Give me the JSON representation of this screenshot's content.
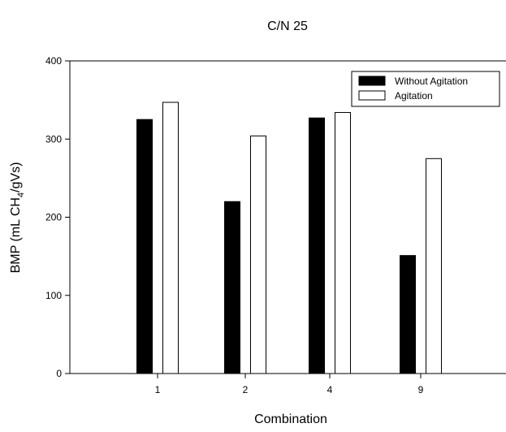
{
  "chart_data": {
    "type": "bar",
    "title": "C/N 25",
    "xlabel": "Combination",
    "ylabel_main": "BMP (mL CH",
    "ylabel_sub": "4",
    "ylabel_tail": "/gVs)",
    "categories": [
      "1",
      "2",
      "4",
      "9"
    ],
    "series": [
      {
        "name": "Without Agitation",
        "color": "#000000",
        "values": [
          325,
          220,
          327,
          151
        ]
      },
      {
        "name": "Agitation",
        "color": "#ffffff",
        "values": [
          347,
          304,
          334,
          275
        ]
      }
    ],
    "ylim": [
      0,
      400
    ],
    "yticks": [
      0,
      100,
      200,
      300,
      400
    ],
    "legend_position": "top-right",
    "grid": false
  }
}
